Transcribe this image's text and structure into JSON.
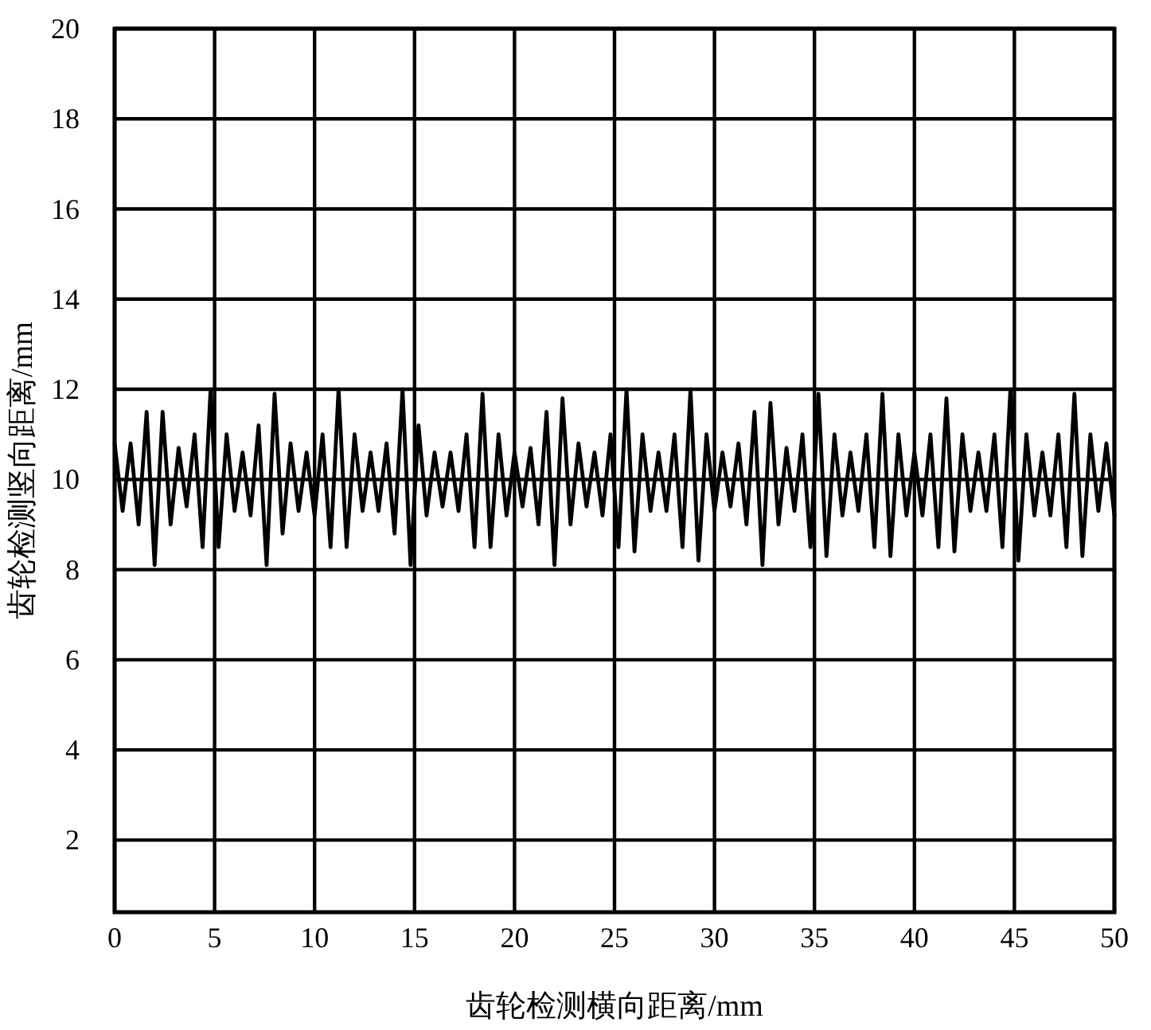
{
  "chart_data": {
    "type": "line",
    "xlabel": "齿轮检测横向距离/mm",
    "ylabel": "齿轮检测竖向距离/mm",
    "xlim": [
      0,
      50
    ],
    "ylim": [
      0.4,
      20
    ],
    "xticks": [
      0,
      5,
      10,
      15,
      20,
      25,
      30,
      35,
      40,
      45,
      50
    ],
    "yticks": [
      2,
      4,
      6,
      8,
      10,
      12,
      14,
      16,
      18,
      20
    ],
    "grid": true,
    "marker": "none",
    "line_style": "solid",
    "series": [
      {
        "color": "#000000",
        "x": [
          0,
          0.4,
          0.8,
          1.2,
          1.6,
          2.0,
          2.4,
          2.8,
          3.2,
          3.6,
          4.0,
          4.4,
          4.8,
          5.2,
          5.6,
          6.0,
          6.4,
          6.8,
          7.2,
          7.6,
          8.0,
          8.4,
          8.8,
          9.2,
          9.6,
          10.0,
          10.4,
          10.8,
          11.2,
          11.6,
          12.0,
          12.4,
          12.8,
          13.2,
          13.6,
          14.0,
          14.4,
          14.8,
          15.2,
          15.6,
          16.0,
          16.4,
          16.8,
          17.2,
          17.6,
          18.0,
          18.4,
          18.8,
          19.2,
          19.6,
          20.0,
          20.4,
          20.8,
          21.2,
          21.6,
          22.0,
          22.4,
          22.8,
          23.2,
          23.6,
          24.0,
          24.4,
          24.8,
          25.2,
          25.6,
          26.0,
          26.4,
          26.8,
          27.2,
          27.6,
          28.0,
          28.4,
          28.8,
          29.2,
          29.6,
          30.0,
          30.4,
          30.8,
          31.2,
          31.6,
          32.0,
          32.4,
          32.8,
          33.2,
          33.6,
          34.0,
          34.4,
          34.8,
          35.2,
          35.6,
          36.0,
          36.4,
          36.8,
          37.2,
          37.6,
          38.0,
          38.4,
          38.8,
          39.2,
          39.6,
          40.0,
          40.4,
          40.8,
          41.2,
          41.6,
          42.0,
          42.4,
          42.8,
          43.2,
          43.6,
          44.0,
          44.4,
          44.8,
          45.2,
          45.6,
          46.0,
          46.4,
          46.8,
          47.2,
          47.6,
          48.0,
          48.4,
          48.8,
          49.2,
          49.6,
          50.0
        ],
        "values": [
          10.8,
          9.3,
          10.8,
          9.0,
          11.5,
          8.1,
          11.5,
          9.0,
          10.7,
          9.4,
          11.0,
          8.5,
          12.0,
          8.5,
          11.0,
          9.3,
          10.6,
          9.2,
          11.2,
          8.1,
          11.9,
          8.8,
          10.8,
          9.3,
          10.6,
          9.2,
          11.0,
          8.5,
          12.0,
          8.5,
          11.0,
          9.3,
          10.6,
          9.3,
          10.8,
          8.8,
          12.0,
          8.1,
          11.2,
          9.2,
          10.6,
          9.4,
          10.6,
          9.3,
          11.0,
          8.5,
          11.9,
          8.5,
          11.0,
          9.2,
          10.6,
          9.4,
          10.7,
          9.0,
          11.5,
          8.1,
          11.8,
          9.0,
          10.8,
          9.4,
          10.6,
          9.2,
          11.0,
          8.5,
          12.0,
          8.4,
          11.0,
          9.3,
          10.6,
          9.3,
          11.0,
          8.5,
          12.0,
          8.2,
          11.0,
          9.3,
          10.6,
          9.4,
          10.8,
          9.0,
          11.5,
          8.1,
          11.7,
          9.0,
          10.7,
          9.3,
          11.0,
          8.5,
          11.9,
          8.3,
          11.0,
          9.2,
          10.6,
          9.3,
          11.0,
          8.5,
          11.9,
          8.3,
          11.0,
          9.2,
          10.6,
          9.2,
          11.0,
          8.5,
          11.8,
          8.4,
          11.0,
          9.3,
          10.6,
          9.3,
          11.0,
          8.5,
          12.0,
          8.2,
          11.0,
          9.2,
          10.6,
          9.2,
          11.0,
          8.5,
          11.9,
          8.3,
          11.0,
          9.3,
          10.8,
          9.2
        ]
      }
    ]
  }
}
